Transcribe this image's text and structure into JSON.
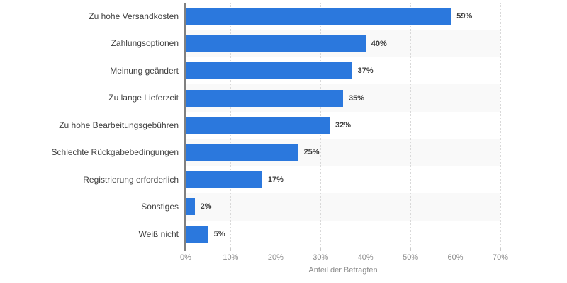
{
  "chart_data": {
    "type": "bar",
    "orientation": "horizontal",
    "categories": [
      "Zu hohe Versandkosten",
      "Zahlungsoptionen",
      "Meinung geändert",
      "Zu lange Lieferzeit",
      "Zu hohe Bearbeitungsgebühren",
      "Schlechte Rückgabebedingungen",
      "Registrierung erforderlich",
      "Sonstiges",
      "Weiß nicht"
    ],
    "values": [
      59,
      40,
      37,
      35,
      32,
      25,
      17,
      2,
      5
    ],
    "value_labels": [
      "59%",
      "40%",
      "37%",
      "35%",
      "32%",
      "25%",
      "17%",
      "2%",
      "5%"
    ],
    "title": "",
    "xlabel": "Anteil der Befragten",
    "ylabel": "",
    "x_ticks": [
      "0%",
      "10%",
      "20%",
      "30%",
      "40%",
      "50%",
      "60%",
      "70%"
    ],
    "xlim": [
      0,
      70
    ],
    "grid": "vertical-dotted",
    "legend": "none",
    "row_banding": "alternating"
  },
  "colors": {
    "bar": "#2B78DD",
    "band_alt": "#f9f9f9",
    "gridline": "#d9d9d9",
    "axis_line": "#808080",
    "tick_mark": "#c9c9c9",
    "label_text": "#404040",
    "value_text": "#404040",
    "tick_text": "#8c8c8c",
    "background": "#ffffff"
  }
}
